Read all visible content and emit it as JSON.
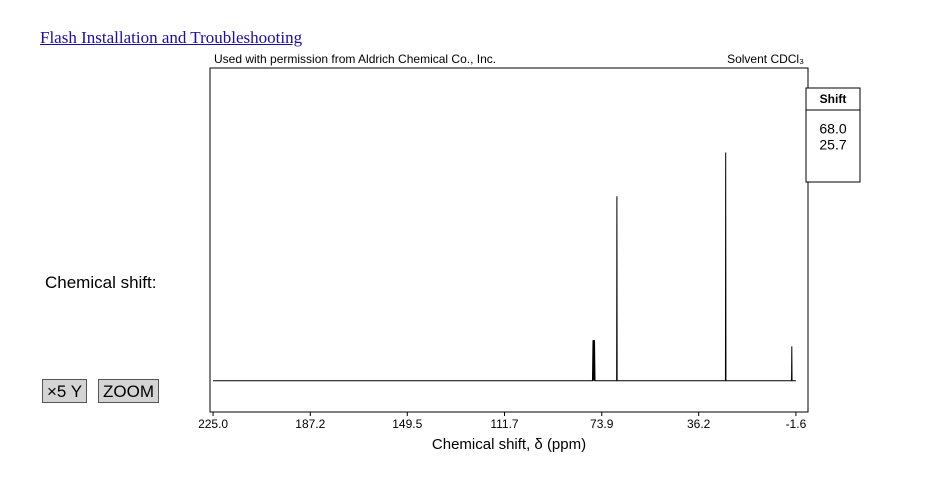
{
  "link": "Flash Installation and Troubleshooting",
  "side_label": "Chemical shift:",
  "buttons": [
    "×5 Y",
    "ZOOM"
  ],
  "peak_table": {
    "header": "Shift",
    "rows": [
      "68.0",
      "25.7"
    ]
  },
  "chart_data": {
    "type": "line",
    "subtitle_left": "Used with permission from Aldrich Chemical Co., Inc.",
    "subtitle_right": "Solvent CDCl₃",
    "x_label": "Chemical shift, δ (ppm)",
    "x": [
      225.0,
      77.5,
      77.3,
      77.15,
      77.0,
      76.85,
      76.7,
      76.5,
      68.1,
      68.0,
      67.9,
      25.8,
      25.7,
      25.6,
      0.1,
      0.0,
      -0.1,
      -1.6
    ],
    "values": [
      0,
      0,
      13,
      0,
      13,
      0,
      13,
      0,
      0,
      59,
      0,
      0,
      73,
      0,
      0,
      11,
      0,
      0
    ],
    "color": "#000000",
    "xlim": [
      226.2,
      -6.3
    ],
    "xticks": [
      {
        "value": 225.0,
        "label": "225.0"
      },
      187.2,
      149.5,
      111.7,
      73.9,
      36.2,
      -1.6
    ],
    "ylim": [
      -10,
      100
    ]
  }
}
